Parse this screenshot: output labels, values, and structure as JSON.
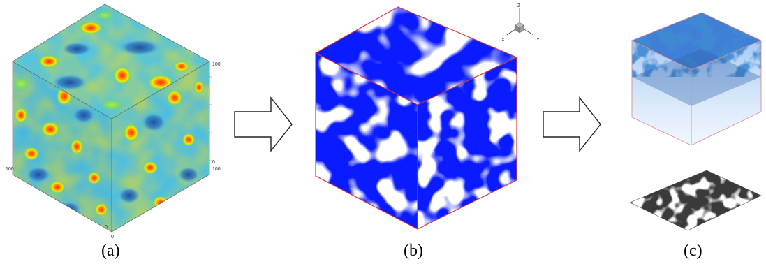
{
  "panels": [
    {
      "label": "(a)"
    },
    {
      "label": "(b)"
    },
    {
      "label": "(c)"
    }
  ],
  "panel_a": {
    "ticks": [
      "100",
      "100",
      "0",
      "100",
      "0",
      "0"
    ]
  },
  "panel_b": {
    "axes": {
      "z": "Z",
      "x": "X",
      "y": "Y"
    }
  },
  "colors": {
    "field_low": "#1f5fb0",
    "field_mid": "#4fc2e8",
    "field_high": "#ff2a00",
    "solid_blue": "#0a1cff",
    "pore_white": "#ffffff",
    "box_edge": "#d9333a",
    "layer_blue": "#4a8ee0",
    "slice_dark": "#3a3a3a"
  },
  "icons": [
    "arrow-right-icon",
    "axis-triad-icon"
  ]
}
